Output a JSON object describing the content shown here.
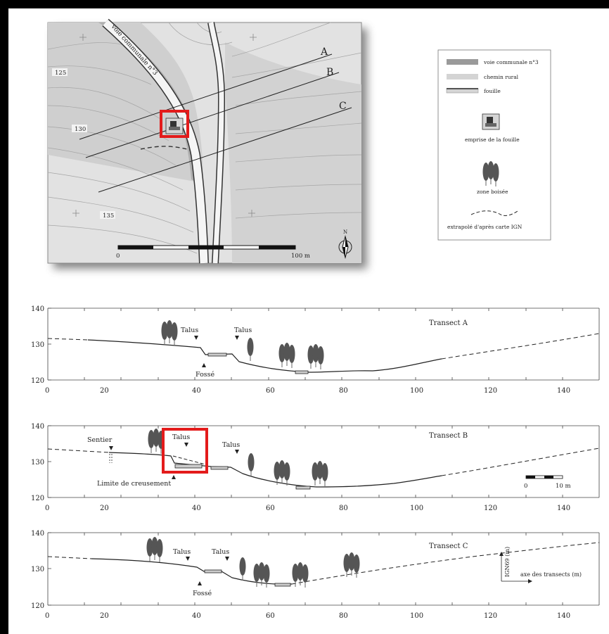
{
  "map": {
    "road_label": "voie communale n°3",
    "contours": [
      "125",
      "130",
      "135"
    ],
    "transect_letters": [
      "A",
      "B",
      "C"
    ],
    "scale_start": "0",
    "scale_end": "100 m",
    "north": "N"
  },
  "legend": {
    "items": [
      "voie communale n°3",
      "chemin rural",
      "fouille",
      "emprise de la fouille",
      "zone boisée",
      "extrapolé d'après carte IGN"
    ]
  },
  "profiles": {
    "y_ticks": [
      "120",
      "130",
      "140"
    ],
    "x_ticks": [
      "0",
      "20",
      "40",
      "60",
      "80",
      "100",
      "120",
      "140"
    ],
    "A": {
      "title": "Transect A",
      "labels": [
        "Talus",
        "Talus",
        "Fossé"
      ]
    },
    "B": {
      "title": "Transect B",
      "labels": [
        "Sentier",
        "Talus",
        "Talus",
        "Limite de creusement"
      ],
      "scale_start": "0",
      "scale_end": "10 m"
    },
    "C": {
      "title": "Transect C",
      "labels": [
        "Talus",
        "Talus",
        "Fossé"
      ],
      "axis_vertical": "IGN69 (m)",
      "axis_horizontal": "axe des transects (m)"
    }
  }
}
